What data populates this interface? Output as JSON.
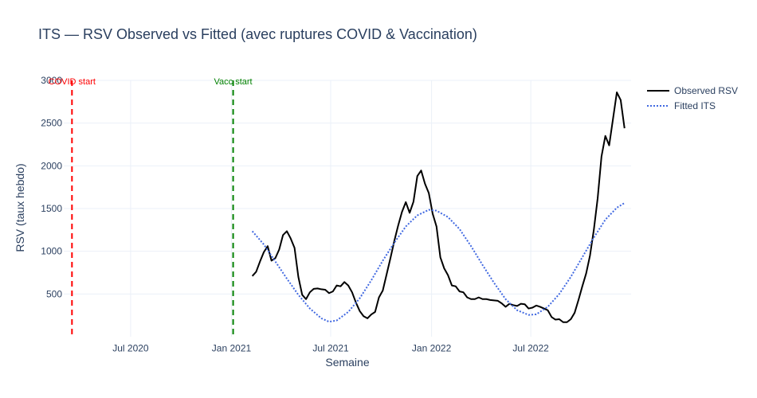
{
  "chart_data": {
    "type": "line",
    "title": "ITS — RSV Observed vs Fitted (avec ruptures COVID & Vaccination)",
    "xlabel": "Semaine",
    "ylabel": "RSV (taux hebdo)",
    "x_range": [
      "2020-03-01",
      "2022-12-31"
    ],
    "ylim": [
      0,
      3000
    ],
    "grid": true,
    "legend_position": "top-right (outside plot)",
    "y_ticks": [
      500,
      1000,
      1500,
      2000,
      2500,
      3000
    ],
    "x_ticks": [
      {
        "date": "2020-07-01",
        "label": "Jul 2020"
      },
      {
        "date": "2021-01-01",
        "label": "Jan 2021"
      },
      {
        "date": "2021-07-01",
        "label": "Jul 2021"
      },
      {
        "date": "2022-01-01",
        "label": "Jan 2022"
      },
      {
        "date": "2022-07-01",
        "label": "Jul 2022"
      }
    ],
    "events": [
      {
        "label": "COVID start",
        "date": "2020-03-16",
        "color": "#ff0000"
      },
      {
        "label": "Vacc start",
        "date": "2021-01-04",
        "color": "#008000"
      }
    ],
    "series": [
      {
        "name": "Observed RSV",
        "color": "#000000",
        "dash": "solid",
        "points": [
          [
            "2021-02-08",
            710
          ],
          [
            "2021-02-15",
            760
          ],
          [
            "2021-02-22",
            880
          ],
          [
            "2021-03-01",
            990
          ],
          [
            "2021-03-08",
            1060
          ],
          [
            "2021-03-15",
            890
          ],
          [
            "2021-03-22",
            920
          ],
          [
            "2021-03-29",
            1020
          ],
          [
            "2021-04-05",
            1190
          ],
          [
            "2021-04-12",
            1235
          ],
          [
            "2021-04-19",
            1150
          ],
          [
            "2021-04-26",
            1040
          ],
          [
            "2021-05-03",
            700
          ],
          [
            "2021-05-10",
            490
          ],
          [
            "2021-05-17",
            440
          ],
          [
            "2021-05-24",
            520
          ],
          [
            "2021-05-31",
            560
          ],
          [
            "2021-06-07",
            565
          ],
          [
            "2021-06-14",
            555
          ],
          [
            "2021-06-21",
            550
          ],
          [
            "2021-06-28",
            510
          ],
          [
            "2021-07-05",
            530
          ],
          [
            "2021-07-12",
            600
          ],
          [
            "2021-07-19",
            590
          ],
          [
            "2021-07-26",
            640
          ],
          [
            "2021-08-02",
            600
          ],
          [
            "2021-08-09",
            520
          ],
          [
            "2021-08-16",
            400
          ],
          [
            "2021-08-23",
            300
          ],
          [
            "2021-08-30",
            240
          ],
          [
            "2021-09-06",
            215
          ],
          [
            "2021-09-13",
            260
          ],
          [
            "2021-09-20",
            290
          ],
          [
            "2021-09-27",
            460
          ],
          [
            "2021-10-04",
            540
          ],
          [
            "2021-10-11",
            730
          ],
          [
            "2021-10-18",
            920
          ],
          [
            "2021-10-25",
            1120
          ],
          [
            "2021-11-01",
            1300
          ],
          [
            "2021-11-08",
            1460
          ],
          [
            "2021-11-15",
            1575
          ],
          [
            "2021-11-22",
            1450
          ],
          [
            "2021-11-29",
            1580
          ],
          [
            "2021-12-06",
            1880
          ],
          [
            "2021-12-13",
            1945
          ],
          [
            "2021-12-20",
            1790
          ],
          [
            "2021-12-27",
            1680
          ],
          [
            "2022-01-03",
            1440
          ],
          [
            "2022-01-10",
            1290
          ],
          [
            "2022-01-17",
            930
          ],
          [
            "2022-01-24",
            800
          ],
          [
            "2022-01-31",
            720
          ],
          [
            "2022-02-07",
            600
          ],
          [
            "2022-02-14",
            590
          ],
          [
            "2022-02-21",
            530
          ],
          [
            "2022-02-28",
            520
          ],
          [
            "2022-03-07",
            460
          ],
          [
            "2022-03-14",
            440
          ],
          [
            "2022-03-21",
            440
          ],
          [
            "2022-03-28",
            460
          ],
          [
            "2022-04-04",
            440
          ],
          [
            "2022-04-11",
            440
          ],
          [
            "2022-04-18",
            430
          ],
          [
            "2022-04-25",
            425
          ],
          [
            "2022-05-02",
            420
          ],
          [
            "2022-05-09",
            390
          ],
          [
            "2022-05-16",
            350
          ],
          [
            "2022-05-23",
            385
          ],
          [
            "2022-05-30",
            370
          ],
          [
            "2022-06-06",
            360
          ],
          [
            "2022-06-13",
            385
          ],
          [
            "2022-06-20",
            380
          ],
          [
            "2022-06-27",
            330
          ],
          [
            "2022-07-04",
            340
          ],
          [
            "2022-07-11",
            365
          ],
          [
            "2022-07-18",
            350
          ],
          [
            "2022-07-25",
            330
          ],
          [
            "2022-08-01",
            310
          ],
          [
            "2022-08-08",
            230
          ],
          [
            "2022-08-15",
            200
          ],
          [
            "2022-08-22",
            205
          ],
          [
            "2022-08-29",
            170
          ],
          [
            "2022-09-05",
            170
          ],
          [
            "2022-09-12",
            205
          ],
          [
            "2022-09-19",
            280
          ],
          [
            "2022-09-26",
            430
          ],
          [
            "2022-10-03",
            590
          ],
          [
            "2022-10-10",
            740
          ],
          [
            "2022-10-17",
            950
          ],
          [
            "2022-10-24",
            1250
          ],
          [
            "2022-10-31",
            1620
          ],
          [
            "2022-11-07",
            2110
          ],
          [
            "2022-11-14",
            2350
          ],
          [
            "2022-11-21",
            2240
          ],
          [
            "2022-11-28",
            2550
          ],
          [
            "2022-12-05",
            2860
          ],
          [
            "2022-12-12",
            2770
          ],
          [
            "2022-12-19",
            2440
          ]
        ]
      },
      {
        "name": "Fitted ITS",
        "color": "#4169e1",
        "dash": "dot",
        "points": [
          [
            "2021-02-08",
            1235
          ],
          [
            "2021-03-01",
            1080
          ],
          [
            "2021-03-22",
            880
          ],
          [
            "2021-04-12",
            680
          ],
          [
            "2021-05-03",
            490
          ],
          [
            "2021-05-24",
            330
          ],
          [
            "2021-06-14",
            215
          ],
          [
            "2021-06-28",
            175
          ],
          [
            "2021-07-12",
            190
          ],
          [
            "2021-08-02",
            290
          ],
          [
            "2021-08-23",
            450
          ],
          [
            "2021-09-13",
            660
          ],
          [
            "2021-10-04",
            890
          ],
          [
            "2021-10-25",
            1100
          ],
          [
            "2021-11-15",
            1290
          ],
          [
            "2021-12-06",
            1420
          ],
          [
            "2021-12-27",
            1485
          ],
          [
            "2022-01-10",
            1475
          ],
          [
            "2022-01-31",
            1400
          ],
          [
            "2022-02-21",
            1260
          ],
          [
            "2022-03-14",
            1060
          ],
          [
            "2022-04-04",
            840
          ],
          [
            "2022-04-25",
            630
          ],
          [
            "2022-05-16",
            440
          ],
          [
            "2022-06-06",
            310
          ],
          [
            "2022-06-27",
            255
          ],
          [
            "2022-07-11",
            262
          ],
          [
            "2022-08-01",
            350
          ],
          [
            "2022-08-22",
            500
          ],
          [
            "2022-09-12",
            700
          ],
          [
            "2022-10-03",
            930
          ],
          [
            "2022-10-24",
            1160
          ],
          [
            "2022-11-14",
            1370
          ],
          [
            "2022-12-05",
            1510
          ],
          [
            "2022-12-19",
            1565
          ]
        ]
      }
    ]
  }
}
